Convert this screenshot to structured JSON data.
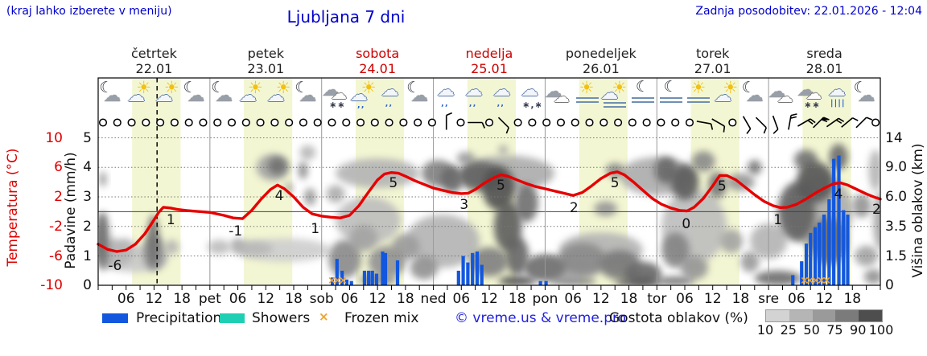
{
  "header": {
    "hint": "(kraj lahko izberete v meniju)",
    "title": "Ljubljana 7 dni",
    "updated": "Zadnja posodobitev: 22.01.2026 - 12:04"
  },
  "days": [
    {
      "name": "četrtek",
      "date": "22.01",
      "weekend": false
    },
    {
      "name": "petek",
      "date": "23.01",
      "weekend": false
    },
    {
      "name": "sobota",
      "date": "24.01",
      "weekend": true
    },
    {
      "name": "nedelja",
      "date": "25.01",
      "weekend": true
    },
    {
      "name": "ponedeljek",
      "date": "26.01",
      "weekend": false
    },
    {
      "name": "torek",
      "date": "27.01",
      "weekend": false
    },
    {
      "name": "sreda",
      "date": "28.01",
      "weekend": false
    }
  ],
  "axes": {
    "temp_label": "Temperatura (°C)",
    "temp_ticks": [
      "10",
      "6",
      "2",
      "-2",
      "-6",
      "-10"
    ],
    "precip_label": "Padavine (mm/h)",
    "precip_ticks": [
      "5",
      "4",
      "3",
      "2",
      "1",
      "0"
    ],
    "cloud_label": "Višina oblakov (km)",
    "cloud_ticks": [
      "14",
      "9.0",
      "6.0",
      "3.5",
      "1.5",
      "0"
    ],
    "time_ticks": [
      "06",
      "12",
      "18"
    ],
    "day_abbrevs": [
      "pet",
      "sob",
      "ned",
      "pon",
      "tor",
      "sre"
    ]
  },
  "legend": {
    "precipitation": "Precipitation",
    "showers": "Showers",
    "frozen": "Frozen mix",
    "frozen_glyph": "×",
    "copyright": "© vreme.us & vreme.pro",
    "cloud_density": "Gostota oblakov (%)",
    "density_ticks": [
      "10",
      "25",
      "50",
      "75",
      "90",
      "100"
    ]
  },
  "colors": {
    "accent_blue": "#0000cc",
    "temp_line": "#e60000",
    "day_red": "#cc0000",
    "precip": "#1257de",
    "showers": "#1fcfb4",
    "frozen": "#f0a22e",
    "band": "#f3f6d2",
    "grid": "#777777",
    "separator": "#999999",
    "density_scale": [
      "#d3d3d3",
      "#b5b5b5",
      "#9a9a9a",
      "#7b7b7b",
      "#4e4e4e"
    ]
  },
  "chart_data": {
    "type": "meteogram",
    "hours_span": 168,
    "now_hour": 12.65,
    "daylight_band_hours": [
      7.3,
      17.7
    ],
    "temperature_unit": "°C",
    "temp_axis_range": [
      -10,
      10
    ],
    "precip_axis_range": [
      0,
      5
    ],
    "cloud_axis_km": [
      0,
      1.5,
      3.5,
      6.0,
      9.0,
      14
    ],
    "temperature": {
      "series": [
        [
          0,
          -4.4
        ],
        [
          2,
          -5.1
        ],
        [
          4,
          -5.4
        ],
        [
          6,
          -5.2
        ],
        [
          8,
          -4.4
        ],
        [
          10,
          -3
        ],
        [
          11.5,
          -1.6
        ],
        [
          13,
          -0.1
        ],
        [
          14,
          0.6
        ],
        [
          15.5,
          0.5
        ],
        [
          17,
          0.3
        ],
        [
          19,
          0.15
        ],
        [
          21,
          0.05
        ],
        [
          24,
          -0.1
        ],
        [
          27,
          -0.5
        ],
        [
          29,
          -0.85
        ],
        [
          31,
          -0.95
        ],
        [
          33,
          0.2
        ],
        [
          35,
          1.7
        ],
        [
          37,
          3
        ],
        [
          38.5,
          3.6
        ],
        [
          40,
          3.1
        ],
        [
          42,
          2
        ],
        [
          44,
          0.6
        ],
        [
          46,
          -0.3
        ],
        [
          48,
          -0.6
        ],
        [
          50,
          -0.75
        ],
        [
          52,
          -0.85
        ],
        [
          54,
          -0.5
        ],
        [
          56,
          0.8
        ],
        [
          58,
          2.6
        ],
        [
          60,
          4.3
        ],
        [
          61.5,
          5.1
        ],
        [
          63,
          5.3
        ],
        [
          64.5,
          5.2
        ],
        [
          66,
          4.8
        ],
        [
          68,
          4.2
        ],
        [
          70,
          3.7
        ],
        [
          72,
          3.2
        ],
        [
          74,
          2.9
        ],
        [
          76,
          2.6
        ],
        [
          78,
          2.45
        ],
        [
          79.5,
          2.5
        ],
        [
          81,
          3
        ],
        [
          83,
          3.9
        ],
        [
          85,
          4.6
        ],
        [
          86.5,
          5
        ],
        [
          88,
          4.8
        ],
        [
          90,
          4.3
        ],
        [
          92,
          3.8
        ],
        [
          94,
          3.4
        ],
        [
          96,
          3.1
        ],
        [
          98,
          2.8
        ],
        [
          100,
          2.5
        ],
        [
          102,
          2.2
        ],
        [
          104,
          2.6
        ],
        [
          106,
          3.5
        ],
        [
          108,
          4.5
        ],
        [
          110,
          5.2
        ],
        [
          111.5,
          5.4
        ],
        [
          113,
          5
        ],
        [
          115,
          4
        ],
        [
          117,
          2.9
        ],
        [
          119,
          1.8
        ],
        [
          121,
          1
        ],
        [
          123,
          0.5
        ],
        [
          125,
          0.15
        ],
        [
          126.5,
          0.1
        ],
        [
          128,
          0.6
        ],
        [
          130,
          1.8
        ],
        [
          132,
          3.5
        ],
        [
          133.5,
          4.9
        ],
        [
          135,
          4.9
        ],
        [
          137,
          4.3
        ],
        [
          139,
          3.3
        ],
        [
          141,
          2.3
        ],
        [
          143,
          1.4
        ],
        [
          145,
          0.8
        ],
        [
          146.5,
          0.55
        ],
        [
          148,
          0.6
        ],
        [
          150,
          1
        ],
        [
          152,
          1.7
        ],
        [
          154,
          2.5
        ],
        [
          156,
          3.2
        ],
        [
          158,
          3.8
        ],
        [
          159.5,
          3.9
        ],
        [
          161,
          3.6
        ],
        [
          163,
          3
        ],
        [
          165,
          2.4
        ],
        [
          167,
          1.9
        ],
        [
          168,
          1.7
        ]
      ],
      "labels": [
        [
          3.6,
          -7.4,
          "-6"
        ],
        [
          15.6,
          -1.2,
          "1"
        ],
        [
          29.5,
          -2.7,
          "-1"
        ],
        [
          38.9,
          2.1,
          "4"
        ],
        [
          46.6,
          -2.4,
          "1"
        ],
        [
          63.4,
          3.8,
          "5"
        ],
        [
          78.6,
          0.9,
          "3"
        ],
        [
          86.5,
          3.5,
          "5"
        ],
        [
          102.2,
          0.5,
          "2"
        ],
        [
          111,
          3.9,
          "5"
        ],
        [
          126.3,
          -1.7,
          "0"
        ],
        [
          134,
          3.4,
          "5"
        ],
        [
          146,
          -1.1,
          "1"
        ],
        [
          159,
          2.3,
          "4"
        ],
        [
          167.2,
          0.3,
          "2"
        ]
      ]
    },
    "precipitation": {
      "unit": "mm/h",
      "bars": [
        [
          50.3,
          0.27
        ],
        [
          51.3,
          0.9
        ],
        [
          52.4,
          0.5
        ],
        [
          53.4,
          0.2
        ],
        [
          54.4,
          0.15
        ],
        [
          57.2,
          0.5
        ],
        [
          58.1,
          0.5
        ],
        [
          58.9,
          0.5
        ],
        [
          59.8,
          0.4
        ],
        [
          61.1,
          1.15
        ],
        [
          61.7,
          1.1
        ],
        [
          64.3,
          0.85
        ],
        [
          77.4,
          0.5
        ],
        [
          78.4,
          1.0
        ],
        [
          79.4,
          0.78
        ],
        [
          80.4,
          1.1
        ],
        [
          81.4,
          1.15
        ],
        [
          82.4,
          0.7
        ],
        [
          95,
          0.15
        ],
        [
          96.2,
          0.15
        ],
        [
          149.2,
          0.35
        ],
        [
          151.1,
          0.82
        ],
        [
          152.1,
          1.42
        ],
        [
          153,
          1.78
        ],
        [
          154,
          1.97
        ],
        [
          154.9,
          2.13
        ],
        [
          155.9,
          2.4
        ],
        [
          157,
          2.92
        ],
        [
          158,
          4.29
        ],
        [
          159.1,
          4.4
        ],
        [
          160.1,
          2.55
        ],
        [
          161,
          2.4
        ]
      ],
      "frozen_mix_hours": [
        50.2,
        51.4,
        52.6,
        151.7,
        152.9,
        154.1,
        155.3,
        156.5
      ]
    },
    "clouds": {
      "blobs": [
        [
          1,
          1.5,
          3,
          2,
          60
        ],
        [
          0.6,
          1.6,
          1.4,
          1.6,
          75
        ],
        [
          3,
          1.1,
          8,
          1,
          30
        ],
        [
          6,
          1.2,
          4,
          0.8,
          25
        ],
        [
          11.8,
          1.5,
          2.6,
          1.8,
          70
        ],
        [
          12,
          1.1,
          5,
          1.2,
          45
        ],
        [
          15.8,
          1.3,
          3,
          0.5,
          30
        ],
        [
          1,
          3.6,
          1.6,
          0.5,
          45
        ],
        [
          26,
          1.3,
          5,
          0.5,
          25
        ],
        [
          33,
          1.25,
          9,
          0.5,
          28
        ],
        [
          30,
          1.4,
          3,
          0.4,
          35
        ],
        [
          38.5,
          4.05,
          4,
          0.6,
          70
        ],
        [
          37.5,
          4,
          7,
          0.9,
          40
        ],
        [
          45,
          4.5,
          3.4,
          0.5,
          28
        ],
        [
          45.5,
          3,
          2.6,
          0.6,
          45
        ],
        [
          44,
          3.9,
          2,
          0.6,
          55
        ],
        [
          41,
          3.3,
          1.6,
          0.4,
          40
        ],
        [
          51,
          3.1,
          4,
          0.6,
          35
        ],
        [
          53,
          0.9,
          7,
          1.3,
          55
        ],
        [
          57,
          1.6,
          6,
          0.9,
          40
        ],
        [
          62,
          0.8,
          8,
          1.1,
          50
        ],
        [
          60,
          0.2,
          8,
          0.35,
          55
        ],
        [
          66,
          1.3,
          6,
          0.9,
          45
        ],
        [
          70,
          0.6,
          6,
          0.8,
          50
        ],
        [
          73,
          3.8,
          7,
          0.9,
          60
        ],
        [
          76,
          3.6,
          5,
          0.9,
          75
        ],
        [
          79,
          4.3,
          4,
          0.45,
          45
        ],
        [
          82,
          3.7,
          9,
          1,
          78
        ],
        [
          86,
          3.3,
          7,
          1.5,
          88
        ],
        [
          87,
          4.6,
          2,
          0.3,
          40
        ],
        [
          88,
          2,
          6,
          1.7,
          80
        ],
        [
          90,
          1,
          5,
          1.3,
          75
        ],
        [
          92,
          2.8,
          5,
          1.3,
          70
        ],
        [
          90,
          0.15,
          8,
          0.35,
          88
        ],
        [
          84,
          0.8,
          8,
          1,
          60
        ],
        [
          96,
          0.6,
          9,
          0.9,
          68
        ],
        [
          102,
          0.15,
          10,
          0.3,
          60
        ],
        [
          104,
          0.9,
          10,
          1.1,
          55
        ],
        [
          112,
          0.7,
          9,
          1,
          65
        ],
        [
          117,
          0.4,
          8,
          0.8,
          75
        ],
        [
          116,
          0.12,
          10,
          0.3,
          85
        ],
        [
          109,
          2.6,
          5,
          0.5,
          48
        ],
        [
          111,
          3.9,
          4,
          0.5,
          55
        ],
        [
          122,
          3.9,
          5,
          0.9,
          75
        ],
        [
          126,
          3.5,
          6,
          1.2,
          82
        ],
        [
          130,
          4.2,
          5,
          0.7,
          55
        ],
        [
          133,
          3.4,
          4,
          0.9,
          65
        ],
        [
          124,
          1.2,
          6,
          1.2,
          58
        ],
        [
          128,
          0.6,
          6,
          0.8,
          48
        ],
        [
          124,
          0.15,
          8,
          0.3,
          70
        ],
        [
          138,
          3.5,
          6,
          0.6,
          48
        ],
        [
          141,
          4,
          3,
          0.5,
          65
        ],
        [
          136,
          1.5,
          5,
          0.8,
          40
        ],
        [
          140,
          0.8,
          4,
          0.7,
          45
        ],
        [
          146,
          0.25,
          10,
          0.5,
          72
        ],
        [
          150,
          2.5,
          8,
          2,
          78
        ],
        [
          154,
          3.5,
          8,
          1.4,
          85
        ],
        [
          157,
          1.5,
          8,
          1.6,
          72
        ],
        [
          152,
          4.25,
          5,
          0.7,
          68
        ],
        [
          159,
          4.35,
          4,
          0.9,
          72
        ],
        [
          164,
          2.7,
          4,
          0.8,
          48
        ],
        [
          165,
          1,
          5,
          0.7,
          40
        ],
        [
          167,
          3.9,
          3,
          1.4,
          30
        ],
        [
          166.5,
          0.3,
          4,
          0.5,
          50
        ],
        [
          168,
          2.2,
          3,
          2,
          40
        ],
        [
          8,
          0.9,
          14,
          0.9,
          18
        ],
        [
          40,
          1.2,
          20,
          0.8,
          15
        ],
        [
          58,
          2.2,
          14,
          1.6,
          25
        ],
        [
          74,
          1.5,
          16,
          1.8,
          30
        ],
        [
          88,
          3.8,
          20,
          1.2,
          35
        ],
        [
          108,
          1.2,
          18,
          1.2,
          30
        ],
        [
          128,
          2,
          14,
          2.5,
          25
        ],
        [
          155,
          2.5,
          14,
          2.5,
          35
        ],
        [
          60,
          3.8,
          18,
          1,
          30
        ],
        [
          100,
          0.6,
          16,
          0.8,
          35
        ],
        [
          120,
          3.7,
          16,
          1.3,
          35
        ],
        [
          144,
          1.5,
          8,
          1.2,
          30
        ]
      ]
    },
    "icons": [
      "moon-cloud",
      "partly-sunny",
      "partly-sunny",
      "moon-cloud",
      "moon-cloud",
      "partly-sunny",
      "partly-sunny",
      "moon-cloud",
      "cloud-snow",
      "sun-rain",
      "cloud-rain",
      "moon-cloud",
      "cloud-rain",
      "cloud-rain",
      "cloud-rain",
      "cloud-sleet",
      "cloudy",
      "sun-fog",
      "sun-cloud-fog",
      "moon-fog",
      "moon-fog",
      "sun-fog",
      "partly-sunny",
      "moon-cloud",
      "cloudy",
      "cloud-snow",
      "cloud-rain-heavy",
      "moon-cloud"
    ],
    "wind": [
      "c",
      "c",
      "c",
      "c",
      "c",
      "c",
      "c",
      "c",
      "c",
      "c",
      "c",
      "c",
      "c",
      "c",
      "c",
      "c",
      "c",
      "c",
      "c",
      "c",
      "c",
      "c",
      "c",
      "c",
      [
        0,
        1
      ],
      "c",
      [
        90,
        1
      ],
      "c",
      [
        135,
        1
      ],
      "c",
      "c",
      "c",
      "c",
      "c",
      "c",
      "c",
      "c",
      "c",
      "c",
      "c",
      "c",
      "c",
      [
        100,
        1
      ],
      [
        120,
        1
      ],
      "c",
      [
        150,
        1
      ],
      [
        135,
        1
      ],
      [
        160,
        1
      ],
      [
        10,
        2
      ],
      [
        60,
        2
      ],
      [
        45,
        3
      ],
      [
        55,
        2
      ],
      [
        50,
        1
      ],
      [
        45,
        1
      ],
      "c"
    ]
  }
}
